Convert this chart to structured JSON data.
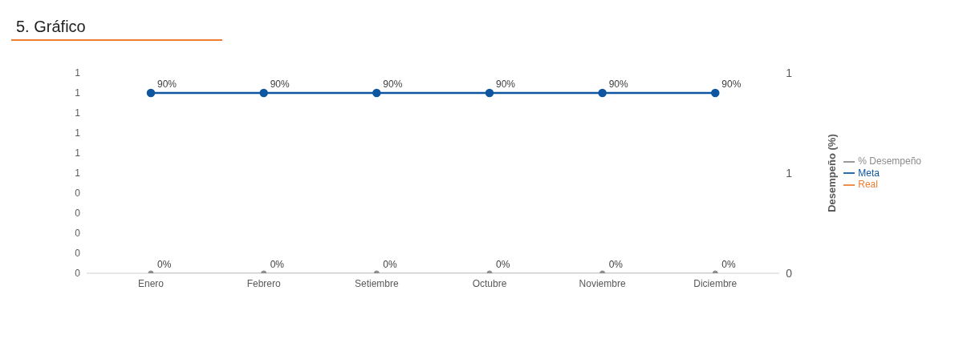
{
  "chart_data": {
    "type": "line",
    "title": "5. Gráfico",
    "y2label": "Desempeño (%)",
    "categories": [
      "Enero",
      "Febrero",
      "Setiembre",
      "Octubre",
      "Noviembre",
      "Diciembre"
    ],
    "series": [
      {
        "name": "Real",
        "color": "#ed7d31",
        "values": [
          null,
          null,
          null,
          null,
          null,
          null
        ]
      },
      {
        "name": "Meta",
        "color": "#0f56a0",
        "values": [
          0.9,
          0.9,
          0.9,
          0.9,
          0.9,
          0.9
        ],
        "value_labels": [
          "90%",
          "90%",
          "90%",
          "90%",
          "90%",
          "90%"
        ]
      },
      {
        "name": "% Desempeño",
        "color": "#8c8c8c",
        "axis": "y2",
        "values": [
          0,
          0,
          0,
          0,
          0,
          0
        ],
        "value_labels": [
          "0%",
          "0%",
          "0%",
          "0%",
          "0%",
          "0%"
        ]
      }
    ],
    "ylim": [
      0,
      1
    ],
    "yticks": [
      {
        "value": 0,
        "label": "0"
      },
      {
        "value": 0.1,
        "label": "0"
      },
      {
        "value": 0.2,
        "label": "0"
      },
      {
        "value": 0.3,
        "label": "0"
      },
      {
        "value": 0.4,
        "label": "0"
      },
      {
        "value": 0.5,
        "label": "1"
      },
      {
        "value": 0.6,
        "label": "1"
      },
      {
        "value": 0.7,
        "label": "1"
      },
      {
        "value": 0.8,
        "label": "1"
      },
      {
        "value": 0.9,
        "label": "1"
      },
      {
        "value": 1,
        "label": "1"
      }
    ],
    "y2lim": [
      0,
      1
    ],
    "y2ticks": [
      {
        "value": 0,
        "label": "0"
      },
      {
        "value": 0.5,
        "label": "1"
      },
      {
        "value": 1,
        "label": "1"
      }
    ],
    "grid": false,
    "legend": "right",
    "marker": "circle",
    "line_style": "solid"
  }
}
